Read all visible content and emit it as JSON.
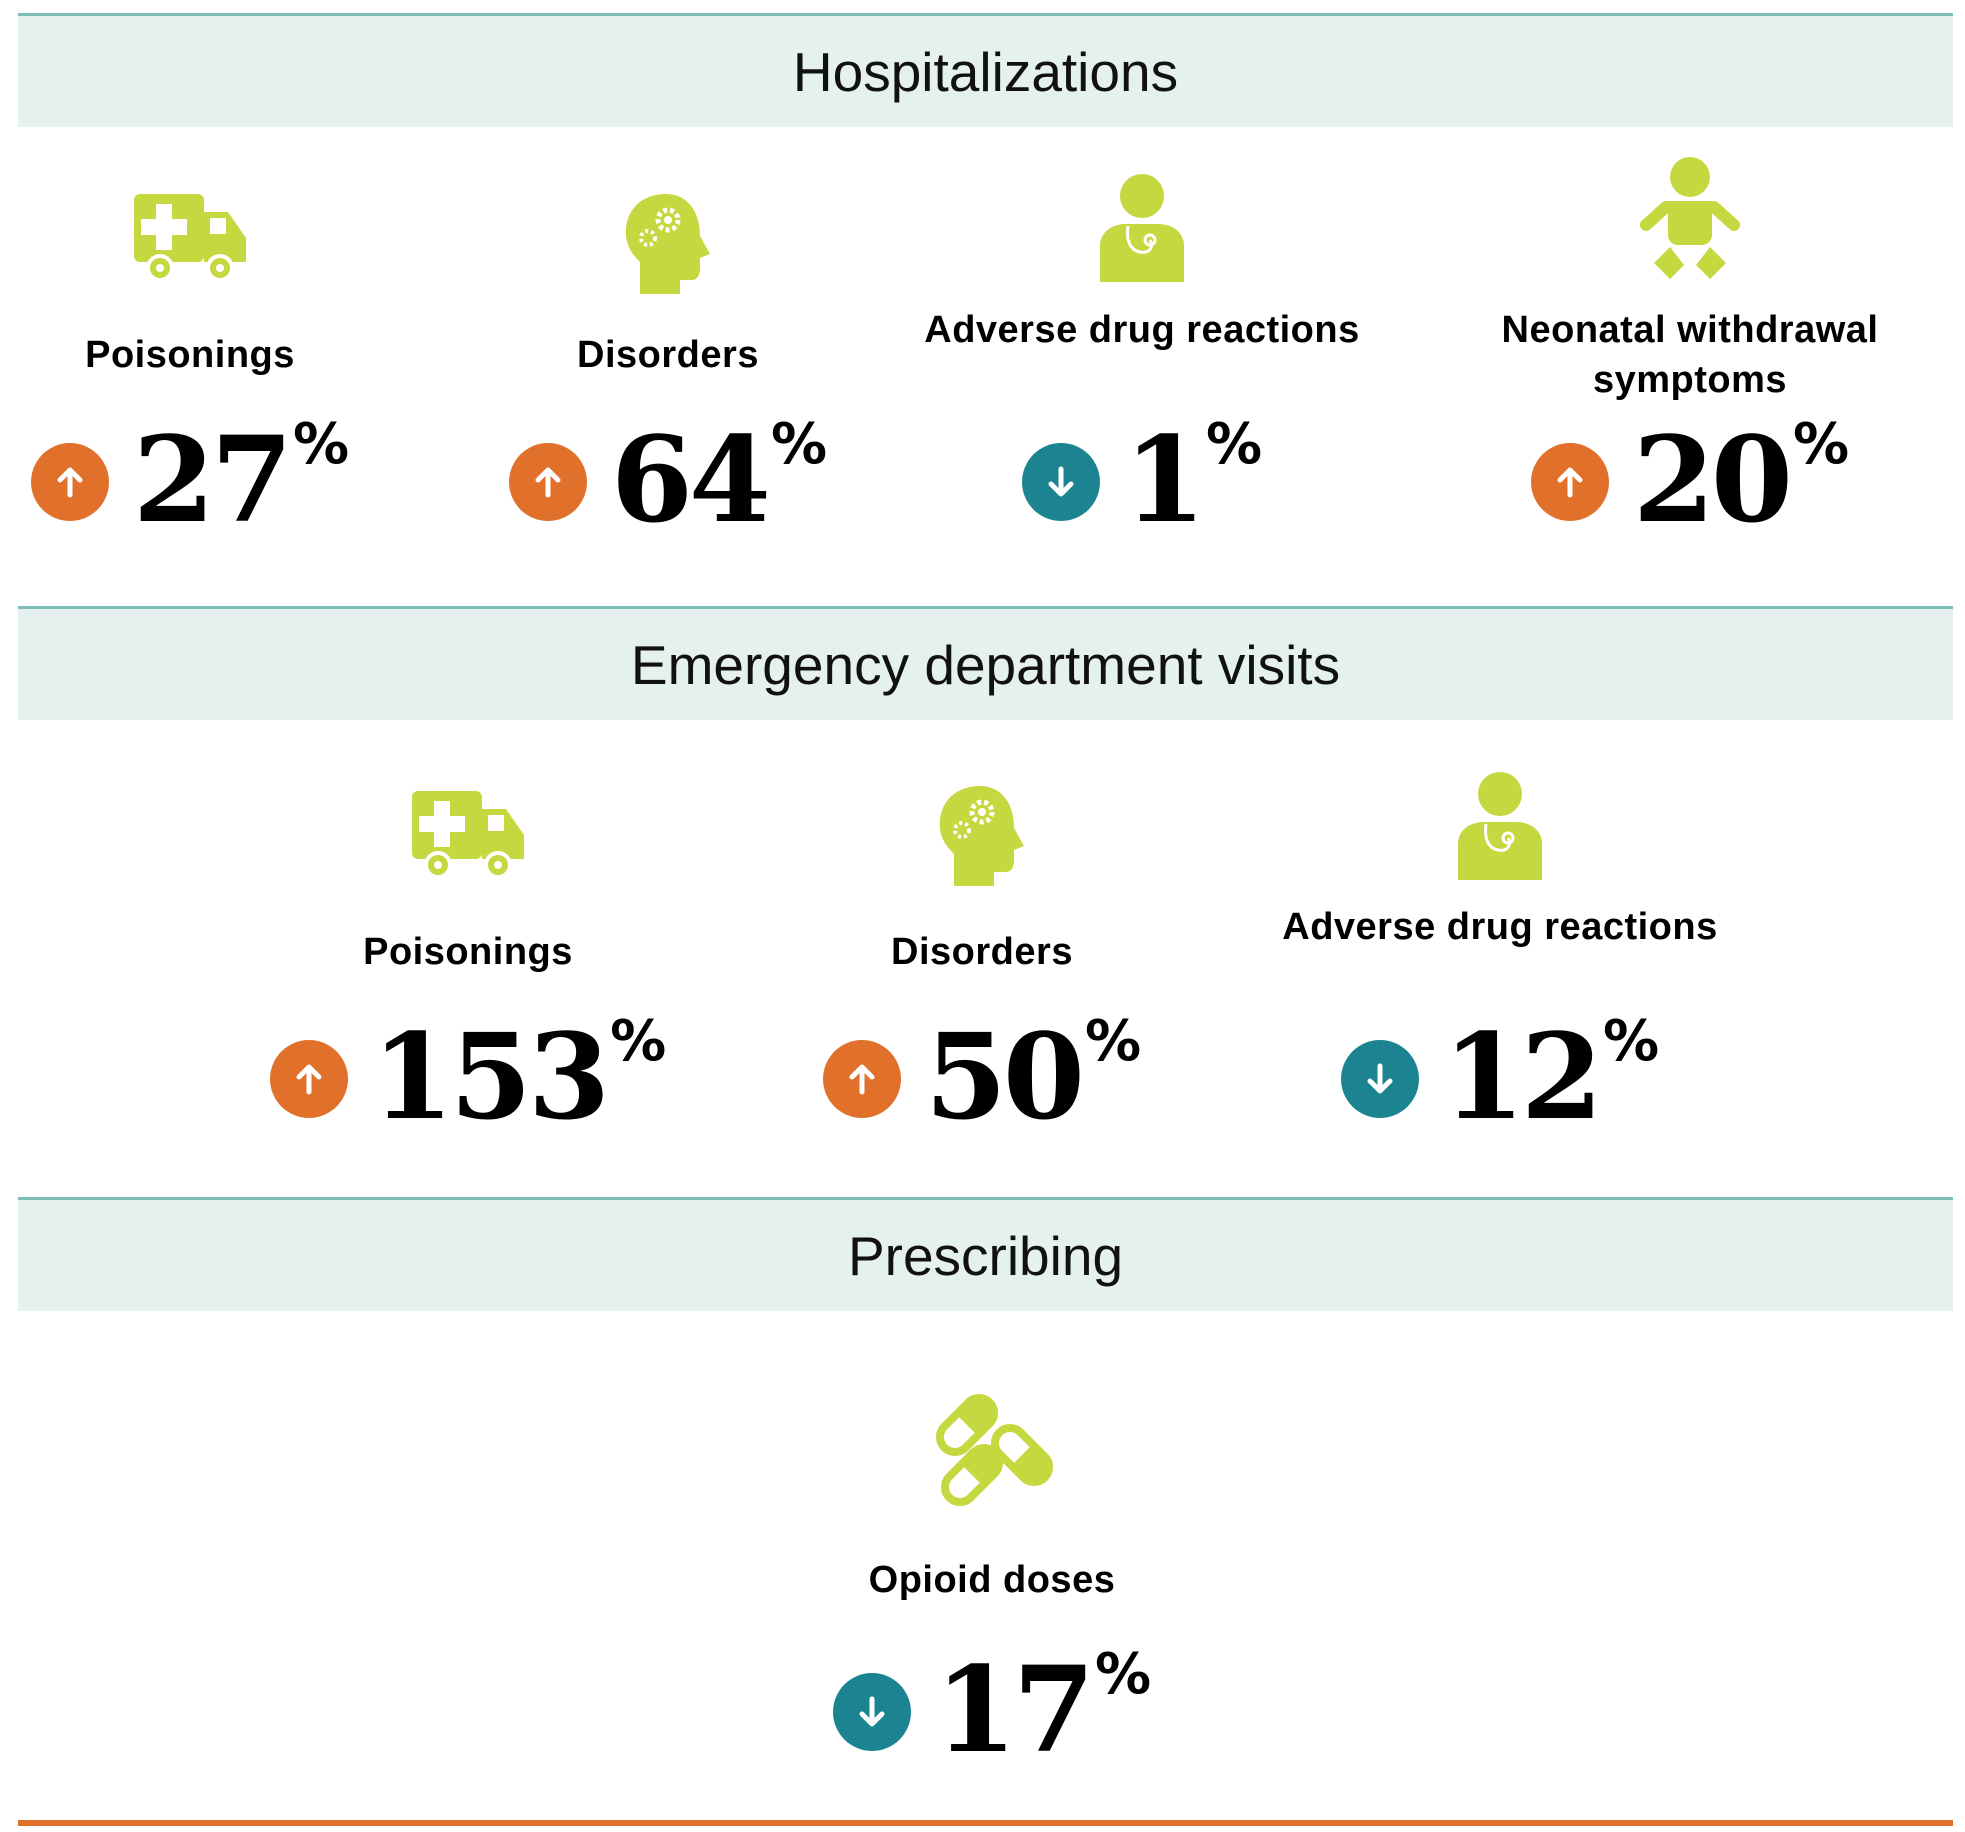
{
  "colors": {
    "icon": "#c5d840",
    "up": "#e0702a",
    "down": "#1b8490",
    "band": "#e4f1ef",
    "rule": "#7fbdb7",
    "bottom_rule": "#e0702a"
  },
  "sections": [
    {
      "title": "Hospitalizations",
      "items": [
        {
          "icon": "ambulance-icon",
          "label": "Poisonings",
          "direction": "up",
          "value": "27",
          "unit": "%"
        },
        {
          "icon": "head-gears-icon",
          "label": "Disorders",
          "direction": "up",
          "value": "64",
          "unit": "%"
        },
        {
          "icon": "doctor-icon",
          "label": "Adverse drug reactions",
          "direction": "down",
          "value": "1",
          "unit": "%"
        },
        {
          "icon": "baby-icon",
          "label": "Neonatal withdrawal symptoms",
          "direction": "up",
          "value": "20",
          "unit": "%"
        }
      ]
    },
    {
      "title": "Emergency department visits",
      "items": [
        {
          "icon": "ambulance-icon",
          "label": "Poisonings",
          "direction": "up",
          "value": "153",
          "unit": "%"
        },
        {
          "icon": "head-gears-icon",
          "label": "Disorders",
          "direction": "up",
          "value": "50",
          "unit": "%"
        },
        {
          "icon": "doctor-icon",
          "label": "Adverse drug reactions",
          "direction": "down",
          "value": "12",
          "unit": "%"
        }
      ]
    },
    {
      "title": "Prescribing",
      "items": [
        {
          "icon": "pills-icon",
          "label": "Opioid doses",
          "direction": "down",
          "value": "17",
          "unit": "%"
        }
      ]
    }
  ]
}
